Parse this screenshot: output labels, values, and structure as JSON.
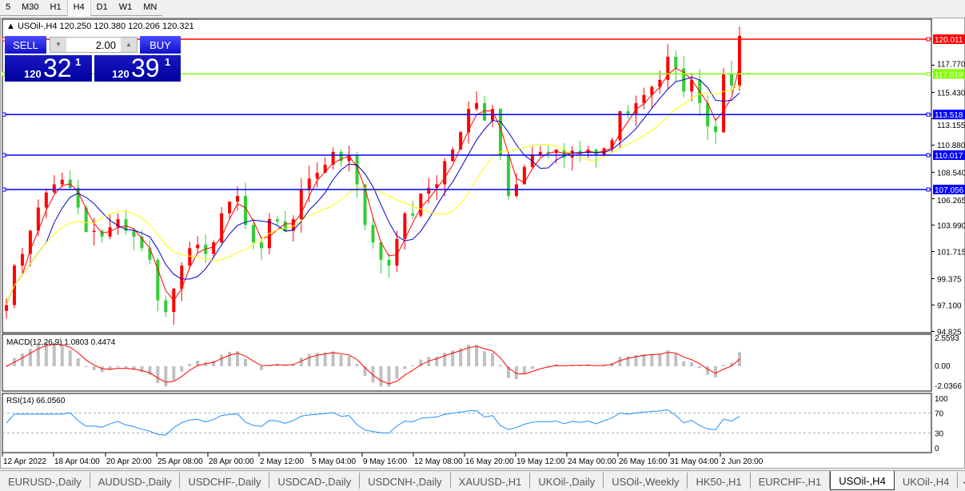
{
  "timeframes": [
    "5",
    "M30",
    "H1",
    "H4",
    "D1",
    "W1",
    "MN"
  ],
  "active_timeframe": "H4",
  "chart_title": "USOil-,H4  120.250 120.380 120.206 120.321",
  "trade_panel": {
    "sell": "SELL",
    "buy": "BUY",
    "volume": "2.00",
    "sell_prefix": "120",
    "sell_big": "32",
    "sell_sup": "1",
    "buy_prefix": "120",
    "buy_big": "39",
    "buy_sup": "1"
  },
  "hlines": [
    {
      "price": "120.011",
      "color": "#ff0000"
    },
    {
      "price": "117.019",
      "color": "#7fff00"
    },
    {
      "price": "113.518",
      "color": "#0000ff"
    },
    {
      "price": "110.017",
      "color": "#0000ff"
    },
    {
      "price": "107.056",
      "color": "#0000ff"
    }
  ],
  "price_ticks": [
    "117.770",
    "115.430",
    "113.155",
    "110.880",
    "108.540",
    "106.265",
    "103.990",
    "101.715",
    "99.375",
    "97.100",
    "94.825"
  ],
  "macd_label": "MACD(12,26,9) 1.0803 0.4474",
  "macd_ticks": [
    "2.5593",
    "0.00",
    "-2.0366"
  ],
  "rsi_label": "RSI(14) 66.0560",
  "rsi_ticks": [
    "100",
    "70",
    "30",
    "0"
  ],
  "time_ticks": [
    "12 Apr 2022",
    "18 Apr 04:00",
    "20 Apr 20:00",
    "25 Apr 08:00",
    "28 Apr 00:00",
    "2 May 12:00",
    "5 May 04:00",
    "9 May 16:00",
    "12 May 08:00",
    "16 May 20:00",
    "19 May 12:00",
    "24 May 00:00",
    "26 May 16:00",
    "31 May 04:00",
    "2 Jun 20:00"
  ],
  "tabs": [
    "EURUSD-,Daily",
    "AUDUSD-,Daily",
    "USDCHF-,Daily",
    "USDCAD-,Daily",
    "USDCNH-,Daily",
    "XAUUSD-,H1",
    "UKOil-,Daily",
    "USOil-,Weekly",
    "HK50-,H1",
    "EURCHF-,H1",
    "USOil-,H4",
    "UKOil-,H4"
  ],
  "active_tab": "USOil-,H4",
  "chart_data": {
    "type": "candlestick",
    "symbol": "USOil-",
    "timeframe": "H4",
    "ylim": [
      94.825,
      121.2
    ],
    "closes": [
      97.1,
      100.5,
      101.5,
      103.5,
      105.5,
      106.8,
      107.5,
      107.9,
      107.2,
      105.5,
      103.4,
      103.5,
      103,
      103.8,
      104.5,
      103.5,
      103,
      102,
      101,
      97.5,
      96.5,
      98.5,
      100.5,
      102,
      102.3,
      101.5,
      102.5,
      105,
      106,
      106.5,
      104,
      102.5,
      102,
      104.5,
      104.3,
      103.5,
      104.5,
      107,
      108,
      108.5,
      109.2,
      110.3,
      109.5,
      110,
      107.5,
      104,
      102.5,
      101,
      100.5,
      102.8,
      105,
      104.8,
      106.7,
      107.2,
      107.5,
      109.5,
      110.5,
      112,
      114,
      114.5,
      113,
      114,
      110,
      106.5,
      107.5,
      109,
      110,
      110.3,
      110.2,
      110.5,
      109.8,
      110.4,
      110.2,
      110.5,
      110,
      110.6,
      111.3,
      113.8,
      113.6,
      114.5,
      115.2,
      115.9,
      116.5,
      118.5,
      117.5,
      115.5,
      116.5,
      114.5,
      112.5,
      112,
      117,
      116,
      120.3
    ],
    "indicators": [
      "MA red",
      "MA blue",
      "MA yellow",
      "MACD(12,26,9)",
      "RSI(14)"
    ],
    "colors": {
      "up": "#ff0000",
      "down": "#32cd32",
      "ma_fast": "#ff0000",
      "ma_mid": "#0000cc",
      "ma_slow": "#ffff00"
    }
  }
}
